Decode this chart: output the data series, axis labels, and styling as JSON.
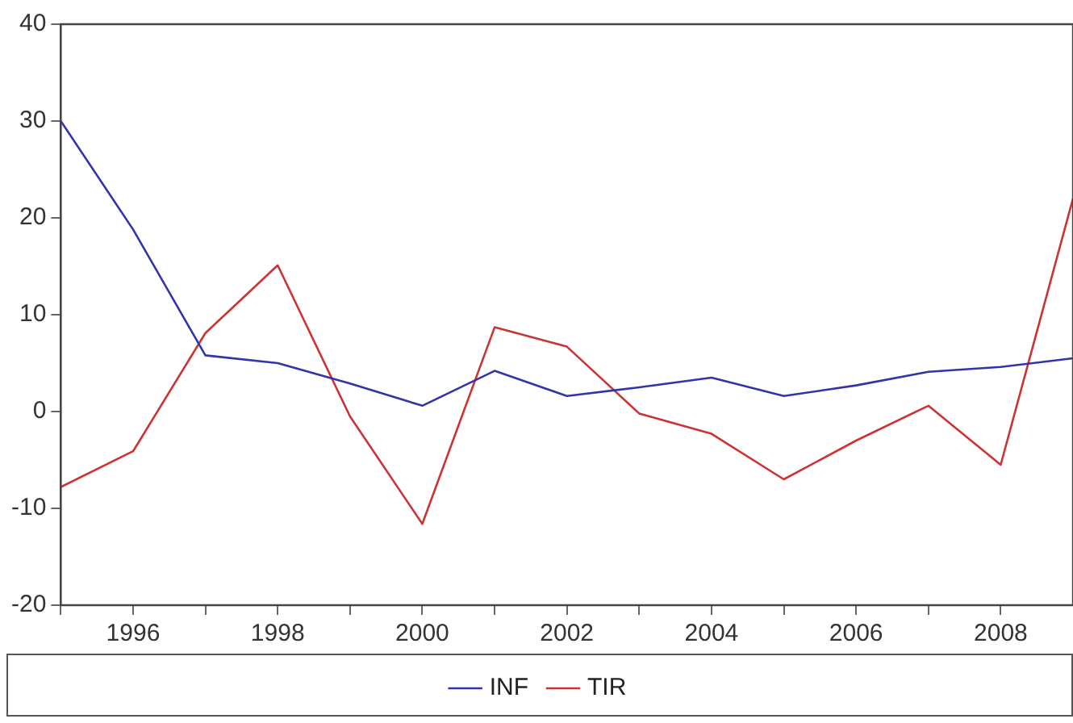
{
  "chart_data": {
    "type": "line",
    "x": [
      1995,
      1996,
      1997,
      1998,
      1999,
      2000,
      2001,
      2002,
      2003,
      2004,
      2005,
      2006,
      2007,
      2008,
      2009
    ],
    "series": [
      {
        "name": "INF",
        "color": "#3333aa",
        "values": [
          30,
          18.8,
          5.8,
          5,
          2.9,
          0.6,
          4.2,
          1.6,
          2.5,
          3.5,
          1.6,
          2.7,
          4.1,
          4.6,
          5.5
        ]
      },
      {
        "name": "TIR",
        "color": "#cc3333",
        "values": [
          -7.8,
          -4.1,
          8.1,
          15.1,
          -0.5,
          -11.6,
          8.7,
          6.7,
          -0.2,
          -2.3,
          -7,
          -3,
          0.6,
          -5.5,
          22
        ]
      }
    ],
    "xlim": [
      1995,
      2009
    ],
    "xticks": [
      {
        "value": 1995,
        "label": null
      },
      1996,
      {
        "value": 1997,
        "label": null
      },
      1998,
      {
        "value": 1999,
        "label": null
      },
      2000,
      {
        "value": 2001,
        "label": null
      },
      2002,
      {
        "value": 2003,
        "label": null
      },
      2004,
      {
        "value": 2005,
        "label": null
      },
      2006,
      {
        "value": 2007,
        "label": null
      },
      2008
    ],
    "ylim": [
      -20,
      40
    ],
    "yticks": [
      -20,
      -10,
      0,
      10,
      20,
      30,
      40
    ],
    "grid": false,
    "legend": "bottom",
    "marker": "none",
    "line_style": "solid"
  }
}
